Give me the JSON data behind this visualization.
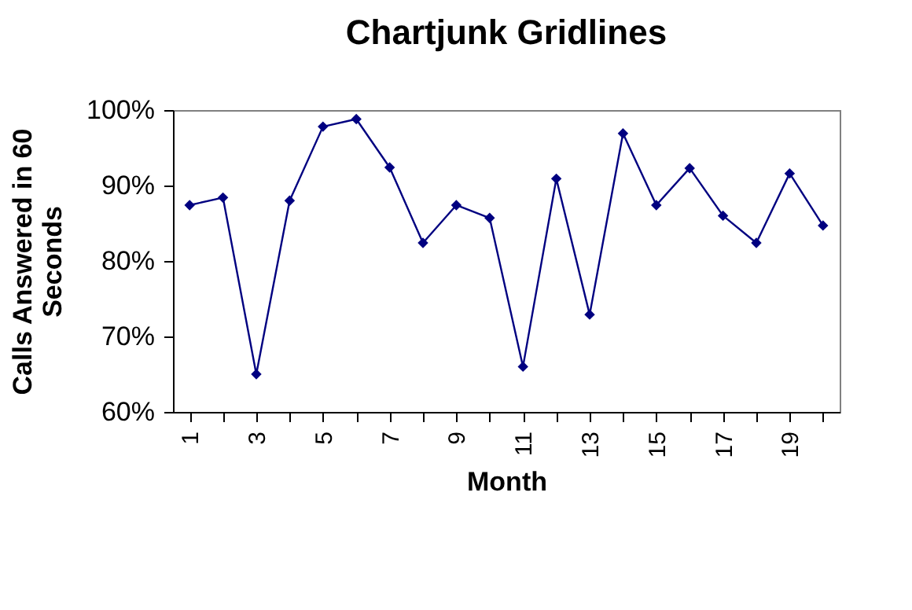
{
  "chart_data": {
    "type": "line",
    "title": "Chartjunk Gridlines",
    "xlabel": "Month",
    "ylabel": "Calls Answered in 60 Seconds",
    "categories": [
      "1",
      null,
      "3",
      null,
      "5",
      null,
      "7",
      null,
      "9",
      null,
      "11",
      null,
      "13",
      null,
      "15",
      null,
      "17",
      null,
      "19",
      null
    ],
    "series": [
      {
        "color": "#000080",
        "values": [
          87.4,
          88.4,
          65,
          88,
          97.8,
          98.8,
          92.4,
          82.4,
          87.4,
          85.7,
          66,
          90.9,
          72.9,
          96.9,
          87.4,
          92.3,
          86,
          82.4,
          91.6,
          84.7
        ]
      }
    ],
    "ylim": [
      60,
      100
    ],
    "yticks": [
      {
        "value": 60,
        "label": "60%"
      },
      {
        "value": 70,
        "label": "70%"
      },
      {
        "value": 80,
        "label": "80%"
      },
      {
        "value": 90,
        "label": "90%"
      },
      {
        "value": 100,
        "label": "100%"
      }
    ],
    "grid": false,
    "legend": false,
    "marker": "diamond",
    "line_style": "solid"
  }
}
